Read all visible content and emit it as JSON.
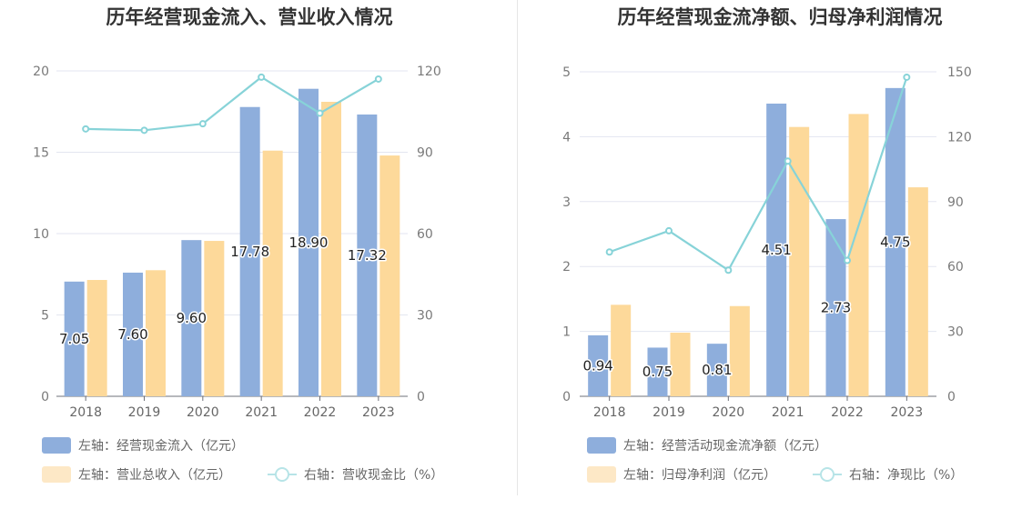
{
  "chart_data": [
    {
      "type": "bar",
      "title": "历年经营现金流入、营业收入情况",
      "categories": [
        "2018",
        "2019",
        "2020",
        "2021",
        "2022",
        "2023"
      ],
      "left_axis": {
        "ylim": [
          0,
          20
        ],
        "ticks": [
          0,
          5,
          10,
          15,
          20
        ]
      },
      "right_axis": {
        "ylim": [
          0,
          120
        ],
        "ticks": [
          0,
          30,
          60,
          90,
          120
        ]
      },
      "series": [
        {
          "name": "左轴：经营现金流入（亿元）",
          "type": "bar",
          "axis": "left",
          "color": "#8eaedc",
          "values": [
            7.05,
            7.6,
            9.6,
            17.78,
            18.9,
            17.32
          ],
          "labels": [
            "7.05",
            "7.60",
            "9.60",
            "17.78",
            "18.90",
            "17.32"
          ]
        },
        {
          "name": "左轴：营业总收入（亿元）",
          "type": "bar",
          "axis": "left",
          "color": "#fdd99a",
          "values": [
            7.15,
            7.75,
            9.55,
            15.1,
            18.1,
            14.8
          ]
        },
        {
          "name": "右轴：营收现金比（%）",
          "type": "line",
          "axis": "right",
          "color": "#87d3d8",
          "values": [
            98.6,
            98.1,
            100.5,
            117.7,
            104.4,
            117.0
          ]
        }
      ],
      "grid": true,
      "legend": "bottom-left"
    },
    {
      "type": "bar",
      "title": "历年经营现金流净额、归母净利润情况",
      "categories": [
        "2018",
        "2019",
        "2020",
        "2021",
        "2022",
        "2023"
      ],
      "left_axis": {
        "ylim": [
          0,
          5
        ],
        "ticks": [
          0,
          1,
          2,
          3,
          4,
          5
        ]
      },
      "right_axis": {
        "ylim": [
          0,
          150
        ],
        "ticks": [
          0,
          30,
          60,
          90,
          120,
          150
        ]
      },
      "series": [
        {
          "name": "左轴：经营活动现金流净额（亿元）",
          "type": "bar",
          "axis": "left",
          "color": "#8eaedc",
          "values": [
            0.94,
            0.75,
            0.81,
            4.51,
            2.73,
            4.75
          ],
          "labels": [
            "0.94",
            "0.75",
            "0.81",
            "4.51",
            "2.73",
            "4.75"
          ]
        },
        {
          "name": "左轴：归母净利润（亿元）",
          "type": "bar",
          "axis": "left",
          "color": "#fdd99a",
          "values": [
            1.41,
            0.98,
            1.39,
            4.15,
            4.35,
            3.22
          ]
        },
        {
          "name": "右轴：净现比（%）",
          "type": "line",
          "axis": "right",
          "color": "#87d3d8",
          "values": [
            66.7,
            76.5,
            58.3,
            108.7,
            62.8,
            147.5
          ]
        }
      ],
      "grid": true,
      "legend": "bottom-left"
    }
  ]
}
